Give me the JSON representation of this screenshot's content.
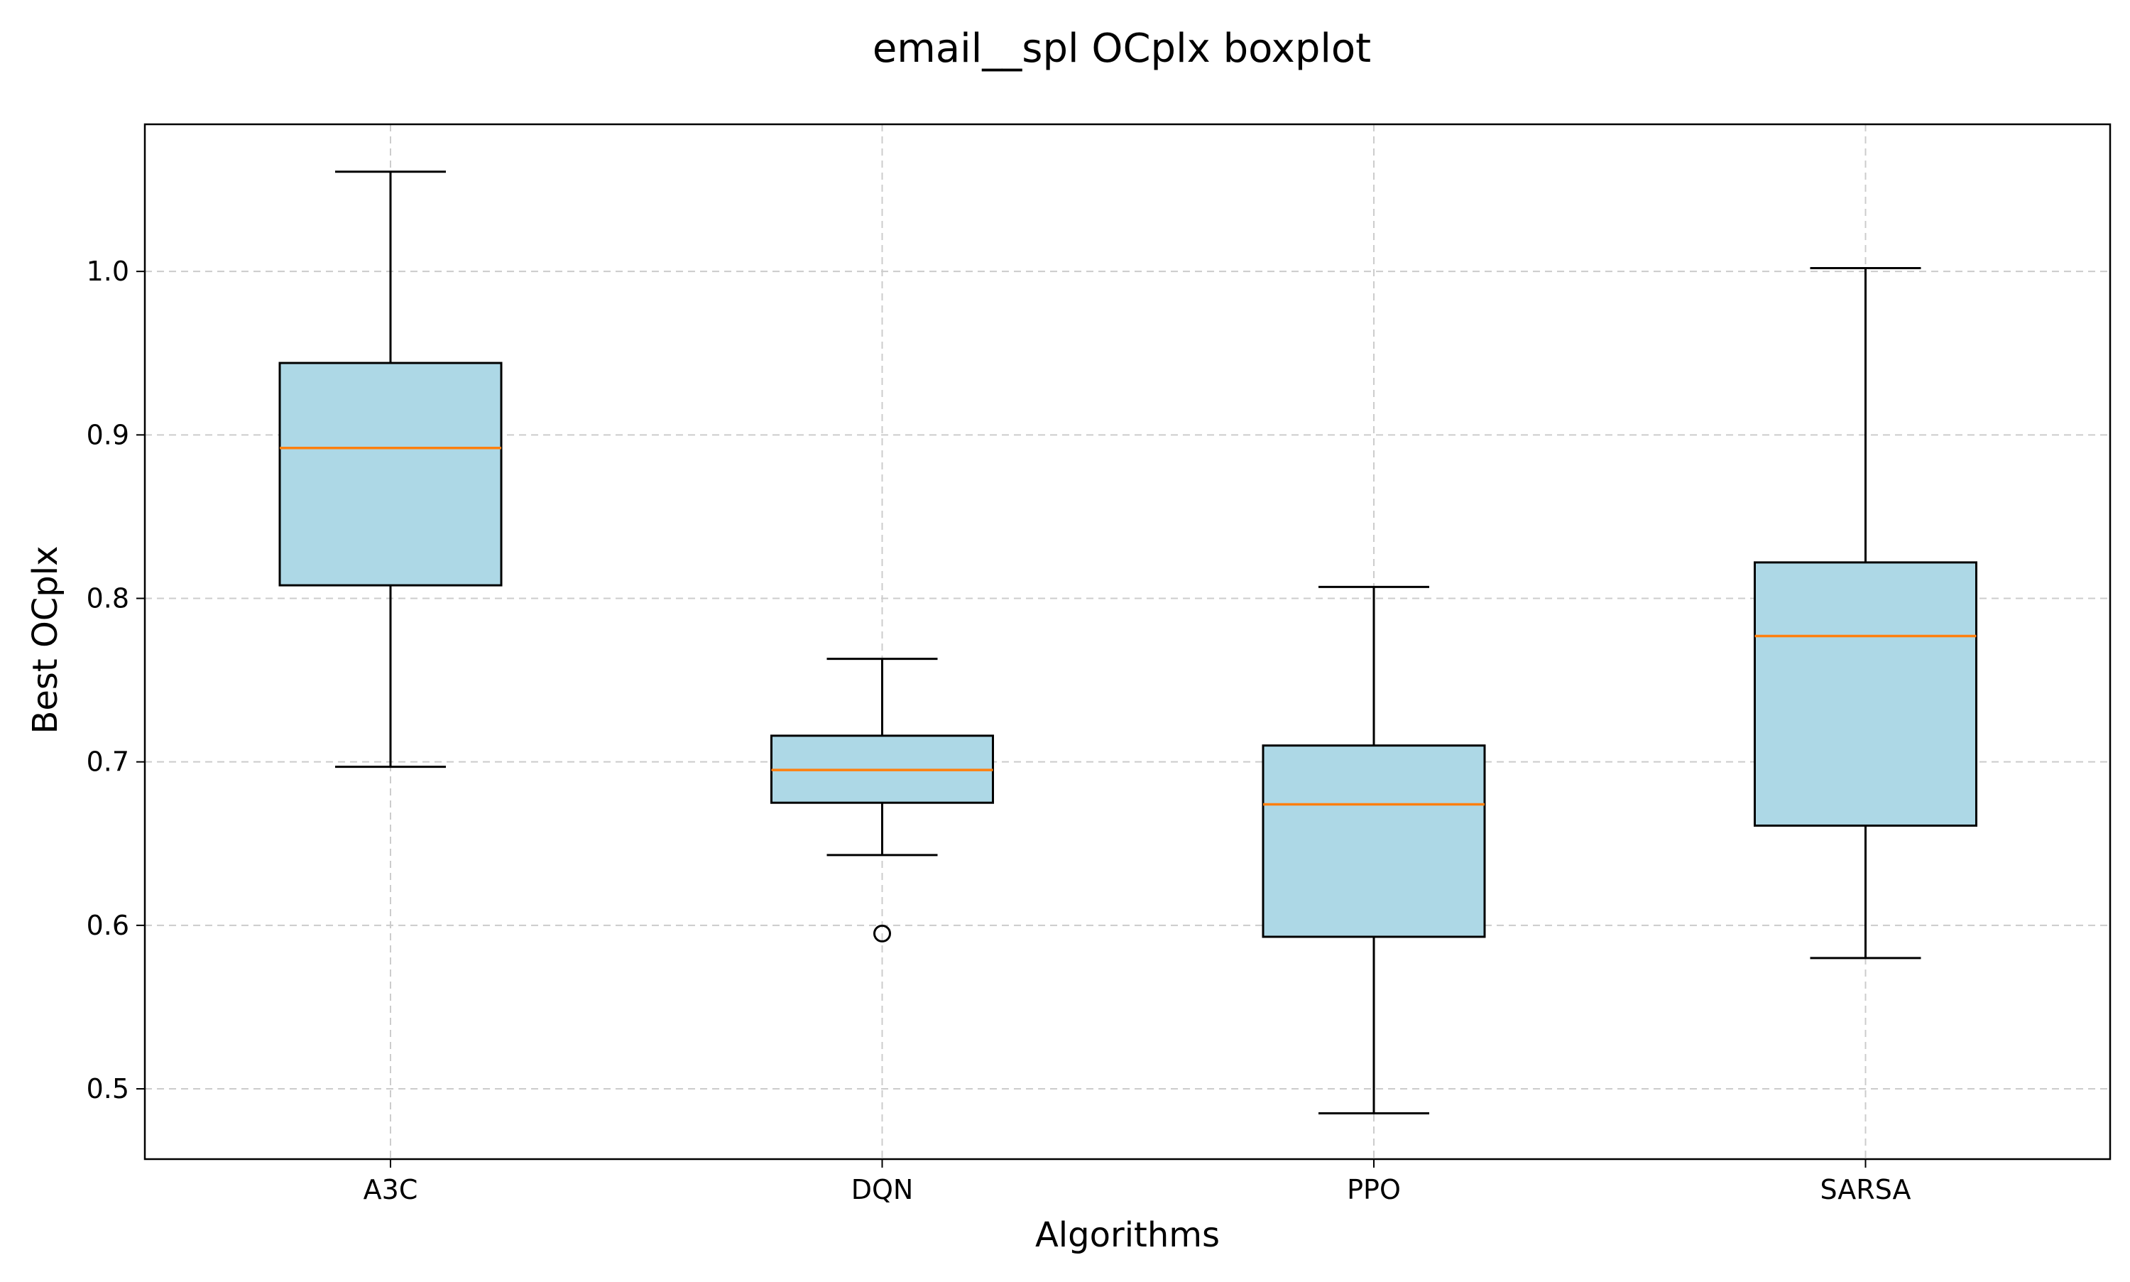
{
  "chart_data": {
    "type": "boxplot",
    "title": "email__spl OCplx boxplot",
    "xlabel": "Algorithms",
    "ylabel": "Best OCplx",
    "categories": [
      "A3C",
      "DQN",
      "PPO",
      "SARSA"
    ],
    "ylim": [
      0.457,
      1.09
    ],
    "yticks": [
      0.5,
      0.6,
      0.7,
      0.8,
      0.9,
      1.0
    ],
    "ytick_labels": [
      "0.5",
      "0.6",
      "0.7",
      "0.8",
      "0.9",
      "1.0"
    ],
    "grid": true,
    "legend": "none",
    "series": [
      {
        "category": "A3C",
        "whisker_low": 0.697,
        "q1": 0.808,
        "median": 0.892,
        "q3": 0.944,
        "whisker_high": 1.061,
        "outliers": []
      },
      {
        "category": "DQN",
        "whisker_low": 0.643,
        "q1": 0.675,
        "median": 0.695,
        "q3": 0.716,
        "whisker_high": 0.763,
        "outliers": [
          0.595
        ]
      },
      {
        "category": "PPO",
        "whisker_low": 0.485,
        "q1": 0.593,
        "median": 0.674,
        "q3": 0.71,
        "whisker_high": 0.807,
        "outliers": []
      },
      {
        "category": "SARSA",
        "whisker_low": 0.58,
        "q1": 0.661,
        "median": 0.777,
        "q3": 0.822,
        "whisker_high": 1.002,
        "outliers": []
      }
    ],
    "colors": {
      "box_fill": "#add8e6",
      "box_edge": "#000000",
      "median": "#ff7f0e",
      "grid": "#cccccc",
      "axes": "#000000"
    }
  }
}
